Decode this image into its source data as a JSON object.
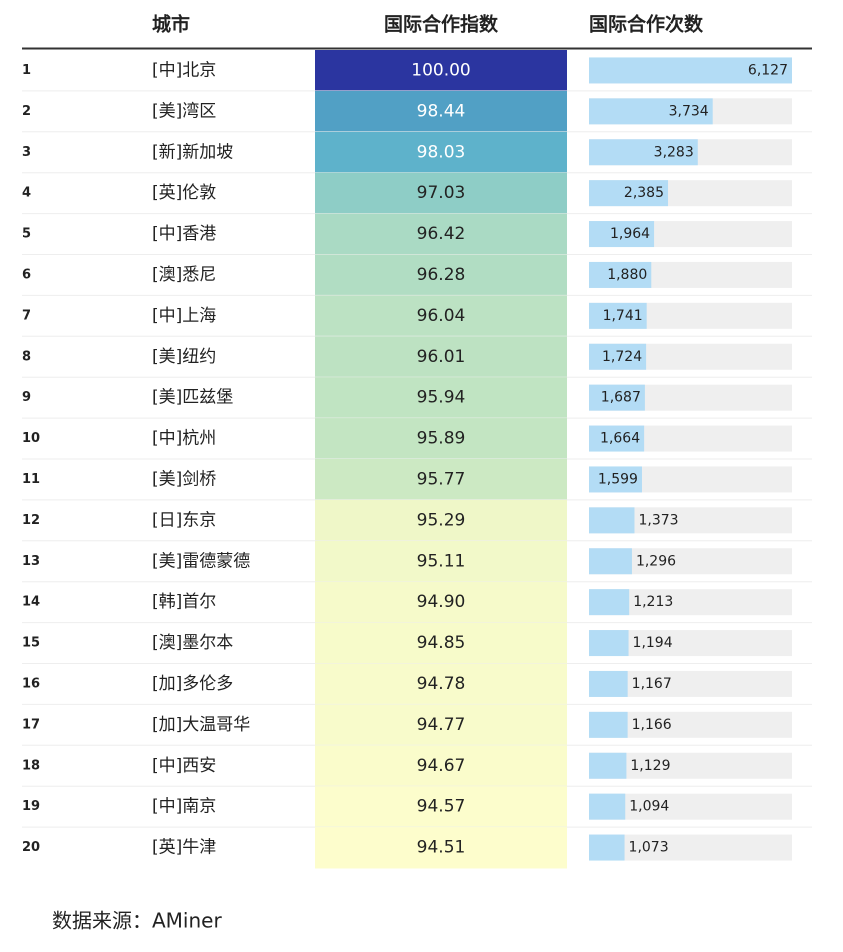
{
  "table": {
    "headers": [
      "城市",
      "国际合作指数",
      "国际合作次数"
    ],
    "rows": [
      {
        "rank": 1,
        "city": "[中]北京",
        "index": 100,
        "index_label": "100.00",
        "count": 6127,
        "count_label": "6,127"
      },
      {
        "rank": 2,
        "city": "[美]湾区",
        "index": 98.44,
        "index_label": "98.44",
        "count": 3734,
        "count_label": "3,734"
      },
      {
        "rank": 3,
        "city": "[新]新加坡",
        "index": 98.03,
        "index_label": "98.03",
        "count": 3283,
        "count_label": "3,283"
      },
      {
        "rank": 4,
        "city": "[英]伦敦",
        "index": 97.03,
        "index_label": "97.03",
        "count": 2385,
        "count_label": "2,385"
      },
      {
        "rank": 5,
        "city": "[中]香港",
        "index": 96.42,
        "index_label": "96.42",
        "count": 1964,
        "count_label": "1,964"
      },
      {
        "rank": 6,
        "city": "[澳]悉尼",
        "index": 96.28,
        "index_label": "96.28",
        "count": 1880,
        "count_label": "1,880"
      },
      {
        "rank": 7,
        "city": "[中]上海",
        "index": 96.04,
        "index_label": "96.04",
        "count": 1741,
        "count_label": "1,741"
      },
      {
        "rank": 8,
        "city": "[美]纽约",
        "index": 96.01,
        "index_label": "96.01",
        "count": 1724,
        "count_label": "1,724"
      },
      {
        "rank": 9,
        "city": "[美]匹兹堡",
        "index": 95.94,
        "index_label": "95.94",
        "count": 1687,
        "count_label": "1,687"
      },
      {
        "rank": 10,
        "city": "[中]杭州",
        "index": 95.89,
        "index_label": "95.89",
        "count": 1664,
        "count_label": "1,664"
      },
      {
        "rank": 11,
        "city": "[美]剑桥",
        "index": 95.77,
        "index_label": "95.77",
        "count": 1599,
        "count_label": "1,599"
      },
      {
        "rank": 12,
        "city": "[日]东京",
        "index": 95.29,
        "index_label": "95.29",
        "count": 1373,
        "count_label": "1,373"
      },
      {
        "rank": 13,
        "city": "[美]雷德蒙德",
        "index": 95.11,
        "index_label": "95.11",
        "count": 1296,
        "count_label": "1,296"
      },
      {
        "rank": 14,
        "city": "[韩]首尔",
        "index": 94.9,
        "index_label": "94.90",
        "count": 1213,
        "count_label": "1,213"
      },
      {
        "rank": 15,
        "city": "[澳]墨尔本",
        "index": 94.85,
        "index_label": "94.85",
        "count": 1194,
        "count_label": "1,194"
      },
      {
        "rank": 16,
        "city": "[加]多伦多",
        "index": 94.78,
        "index_label": "94.78",
        "count": 1167,
        "count_label": "1,167"
      },
      {
        "rank": 17,
        "city": "[加]大温哥华",
        "index": 94.77,
        "index_label": "94.77",
        "count": 1166,
        "count_label": "1,166"
      },
      {
        "rank": 18,
        "city": "[中]西安",
        "index": 94.67,
        "index_label": "94.67",
        "count": 1129,
        "count_label": "1,129"
      },
      {
        "rank": 19,
        "city": "[中]南京",
        "index": 94.57,
        "index_label": "94.57",
        "count": 1094,
        "count_label": "1,094"
      },
      {
        "rank": 20,
        "city": "[英]牛津",
        "index": 94.51,
        "index_label": "94.51",
        "count": 1073,
        "count_label": "1,073"
      }
    ]
  },
  "source": "数据来源：AMiner"
}
